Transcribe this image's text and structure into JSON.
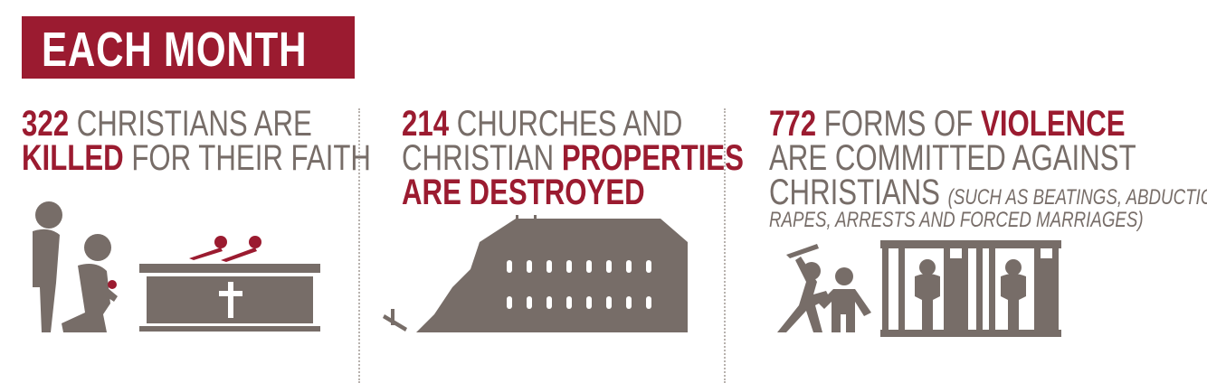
{
  "banner": {
    "title": "EACH MONTH"
  },
  "colors": {
    "accent": "#9b1b30",
    "text": "#776d68"
  },
  "stats": [
    {
      "number": "322",
      "line1_rest": " CHRISTIANS ARE",
      "emph": "KILLED",
      "line2_rest": " FOR THEIR FAITH",
      "icon": "mourners-coffin-icon"
    },
    {
      "number": "214",
      "line1_rest": " CHURCHES AND",
      "line2_pre": "CHRISTIAN ",
      "emph1": "PROPERTIES",
      "emph2": "ARE DESTROYED",
      "icon": "destroyed-church-icon"
    },
    {
      "number": "772",
      "line1_mid": " FORMS OF ",
      "emph": "VIOLENCE",
      "line2": "ARE COMMITTED AGAINST",
      "line3": "CHRISTIANS ",
      "note1": "(SUCH AS BEATINGS, ABDUCTIONS,",
      "note2": "RAPES, ARRESTS AND FORCED MARRIAGES)",
      "icons": [
        "beating-icon",
        "prison-bars-icon"
      ]
    }
  ]
}
